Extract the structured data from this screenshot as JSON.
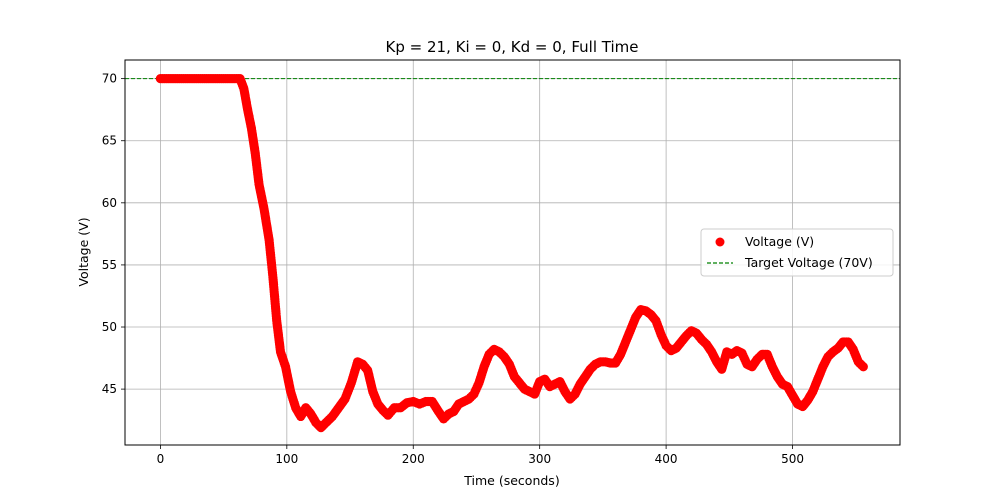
{
  "chart_data": {
    "type": "scatter",
    "title": "Kp = 21, Ki = 0, Kd = 0, Full Time",
    "xlabel": "Time (seconds)",
    "ylabel": "Voltage (V)",
    "xlim": [
      -28,
      585
    ],
    "ylim": [
      40.5,
      71.5
    ],
    "xticks": [
      0,
      100,
      200,
      300,
      400,
      500
    ],
    "yticks": [
      45,
      50,
      55,
      60,
      65,
      70
    ],
    "grid": true,
    "legend_position": "center-right",
    "series": [
      {
        "name": "Voltage (V)",
        "kind": "scatter",
        "color": "#ff0000",
        "points": [
          [
            0,
            70
          ],
          [
            10,
            70
          ],
          [
            20,
            70
          ],
          [
            30,
            70
          ],
          [
            40,
            70
          ],
          [
            50,
            70
          ],
          [
            60,
            70
          ],
          [
            63,
            70
          ],
          [
            66,
            69.2
          ],
          [
            69,
            67.5
          ],
          [
            72,
            66
          ],
          [
            75,
            64
          ],
          [
            78,
            61.5
          ],
          [
            82,
            59.5
          ],
          [
            86,
            57
          ],
          [
            89,
            54
          ],
          [
            92,
            50.5
          ],
          [
            95,
            48
          ],
          [
            99,
            46.8
          ],
          [
            103,
            44.8
          ],
          [
            107,
            43.5
          ],
          [
            111,
            42.8
          ],
          [
            115,
            43.5
          ],
          [
            119,
            43
          ],
          [
            123,
            42.3
          ],
          [
            127,
            41.9
          ],
          [
            131,
            42.3
          ],
          [
            136,
            42.8
          ],
          [
            141,
            43.5
          ],
          [
            146,
            44.2
          ],
          [
            151,
            45.5
          ],
          [
            156,
            47.2
          ],
          [
            160,
            47
          ],
          [
            164,
            46.5
          ],
          [
            168,
            44.8
          ],
          [
            172,
            43.8
          ],
          [
            176,
            43.3
          ],
          [
            180,
            42.9
          ],
          [
            185,
            43.5
          ],
          [
            190,
            43.5
          ],
          [
            195,
            43.9
          ],
          [
            200,
            44
          ],
          [
            205,
            43.8
          ],
          [
            210,
            44
          ],
          [
            215,
            44
          ],
          [
            220,
            43.2
          ],
          [
            224,
            42.6
          ],
          [
            228,
            43
          ],
          [
            232,
            43.2
          ],
          [
            236,
            43.8
          ],
          [
            240,
            44
          ],
          [
            244,
            44.2
          ],
          [
            248,
            44.6
          ],
          [
            252,
            45.5
          ],
          [
            256,
            46.8
          ],
          [
            260,
            47.8
          ],
          [
            264,
            48.2
          ],
          [
            268,
            48
          ],
          [
            272,
            47.6
          ],
          [
            276,
            47
          ],
          [
            280,
            46
          ],
          [
            284,
            45.5
          ],
          [
            288,
            45
          ],
          [
            292,
            44.8
          ],
          [
            296,
            44.6
          ],
          [
            300,
            45.6
          ],
          [
            304,
            45.8
          ],
          [
            308,
            45.2
          ],
          [
            312,
            45.4
          ],
          [
            316,
            45.6
          ],
          [
            320,
            44.8
          ],
          [
            324,
            44.2
          ],
          [
            328,
            44.6
          ],
          [
            332,
            45.4
          ],
          [
            336,
            46
          ],
          [
            340,
            46.6
          ],
          [
            344,
            47
          ],
          [
            348,
            47.2
          ],
          [
            352,
            47.2
          ],
          [
            356,
            47.1
          ],
          [
            360,
            47.1
          ],
          [
            364,
            47.8
          ],
          [
            368,
            48.8
          ],
          [
            372,
            49.8
          ],
          [
            376,
            50.8
          ],
          [
            380,
            51.4
          ],
          [
            384,
            51.3
          ],
          [
            388,
            51
          ],
          [
            392,
            50.5
          ],
          [
            396,
            49.4
          ],
          [
            400,
            48.5
          ],
          [
            404,
            48.1
          ],
          [
            408,
            48.3
          ],
          [
            412,
            48.8
          ],
          [
            416,
            49.3
          ],
          [
            420,
            49.7
          ],
          [
            424,
            49.5
          ],
          [
            428,
            49
          ],
          [
            432,
            48.6
          ],
          [
            436,
            48
          ],
          [
            440,
            47.2
          ],
          [
            444,
            46.6
          ],
          [
            448,
            48
          ],
          [
            452,
            47.8
          ],
          [
            456,
            48.1
          ],
          [
            460,
            47.9
          ],
          [
            464,
            47
          ],
          [
            468,
            46.8
          ],
          [
            472,
            47.4
          ],
          [
            476,
            47.8
          ],
          [
            480,
            47.8
          ],
          [
            484,
            46.8
          ],
          [
            488,
            46
          ],
          [
            492,
            45.4
          ],
          [
            496,
            45.2
          ],
          [
            500,
            44.5
          ],
          [
            504,
            43.8
          ],
          [
            508,
            43.6
          ],
          [
            512,
            44.1
          ],
          [
            516,
            44.8
          ],
          [
            520,
            45.8
          ],
          [
            524,
            46.8
          ],
          [
            528,
            47.6
          ],
          [
            532,
            48
          ],
          [
            536,
            48.3
          ],
          [
            540,
            48.8
          ],
          [
            544,
            48.8
          ],
          [
            548,
            48.2
          ],
          [
            552,
            47.2
          ],
          [
            556,
            46.8
          ]
        ]
      },
      {
        "name": "Target Voltage (70V)",
        "kind": "hline",
        "value": 70,
        "color": "#008000",
        "dashed": true
      }
    ]
  }
}
